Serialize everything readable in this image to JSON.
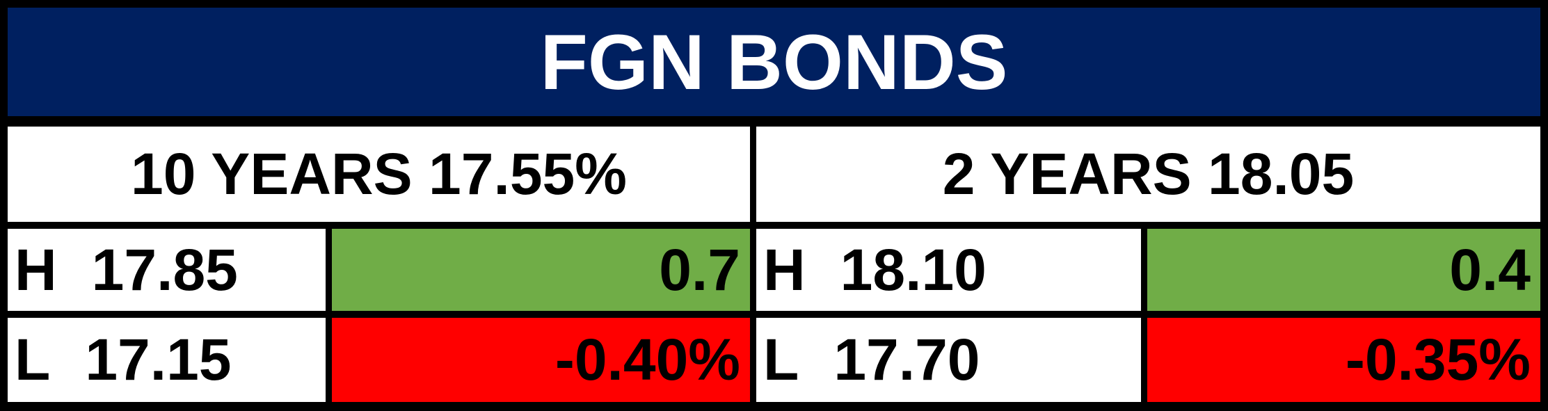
{
  "title": "FGN BONDS",
  "panels": [
    {
      "heading": "10 YEARS 17.55%",
      "high": {
        "label": "H",
        "value": "17.85",
        "change": "0.7"
      },
      "low": {
        "label": "L",
        "value": "17.15",
        "change": "-0.40%"
      }
    },
    {
      "heading": "2 YEARS 18.05",
      "high": {
        "label": "H",
        "value": "18.10",
        "change": "0.4"
      },
      "low": {
        "label": "L",
        "value": "17.70",
        "change": "-0.35%"
      }
    }
  ]
}
